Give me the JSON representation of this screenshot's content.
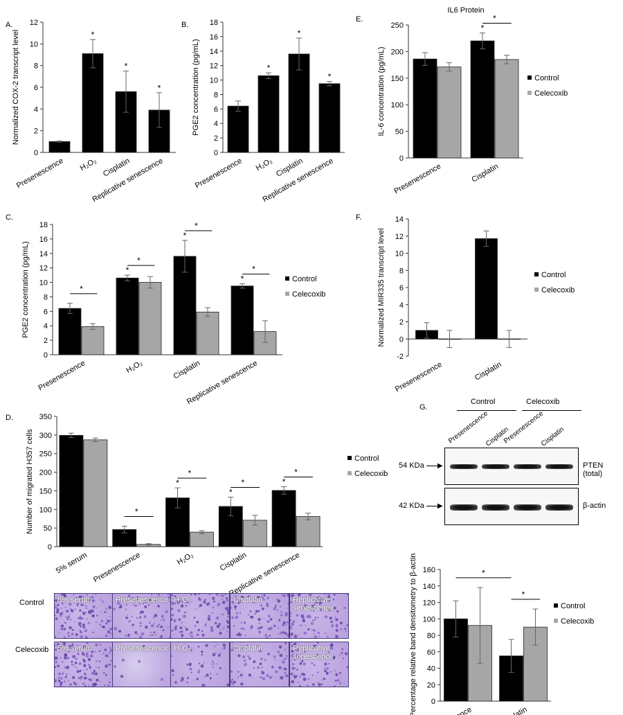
{
  "colors": {
    "control": "#000000",
    "celecoxib": "#a6a6a6",
    "axis": "#333333"
  },
  "panels": {
    "A": "A.",
    "B": "B.",
    "C": "C.",
    "D": "D.",
    "E": "E.",
    "F": "F.",
    "G": "G."
  },
  "chart_data": [
    {
      "id": "A",
      "type": "bar",
      "ylabel": "Normalized COX-2 transcript level",
      "ylim": [
        0,
        12
      ],
      "yticks": [
        0,
        2,
        4,
        6,
        8,
        10,
        12
      ],
      "categories": [
        "Presenescence",
        "H₂O₂",
        "Cisplatin",
        "Replicative senescence"
      ],
      "series": [
        {
          "values": [
            1.0,
            9.1,
            5.6,
            3.9
          ],
          "err": [
            0.05,
            1.3,
            1.9,
            1.6
          ],
          "sig": [
            false,
            true,
            true,
            true
          ]
        }
      ]
    },
    {
      "id": "B",
      "type": "bar",
      "ylabel": "PGE2 concentration (pg/mL)",
      "ylim": [
        0,
        18
      ],
      "yticks": [
        0,
        2,
        4,
        6,
        8,
        10,
        12,
        14,
        16,
        18
      ],
      "categories": [
        "Presenescence",
        "H₂O₂",
        "Cisplatin",
        "Replicative senescence"
      ],
      "series": [
        {
          "values": [
            6.4,
            10.6,
            13.6,
            9.5
          ],
          "err": [
            0.7,
            0.4,
            2.2,
            0.3
          ],
          "sig": [
            false,
            true,
            true,
            true
          ]
        }
      ]
    },
    {
      "id": "E",
      "type": "bar",
      "title": "IL6 Protein",
      "ylabel": "IL-6 concentration (pg/mL)",
      "ylim": [
        0,
        250
      ],
      "yticks": [
        0,
        50,
        100,
        150,
        200,
        250
      ],
      "categories": [
        "Presenescence",
        "Cisplatin"
      ],
      "legend": [
        "Control",
        "Celecoxib"
      ],
      "series": [
        {
          "name": "Control",
          "values": [
            186,
            220
          ],
          "err": [
            12,
            15
          ],
          "sig": [
            false,
            true
          ]
        },
        {
          "name": "Celecoxib",
          "values": [
            171,
            185
          ],
          "err": [
            8,
            8
          ],
          "sig": [
            false,
            false
          ]
        }
      ],
      "brackets": [
        {
          "category": 1,
          "label": "*"
        }
      ]
    },
    {
      "id": "C",
      "type": "bar",
      "ylabel": "PGE2 concentration (pg/mL)",
      "ylim": [
        0,
        18
      ],
      "yticks": [
        0,
        2,
        4,
        6,
        8,
        10,
        12,
        14,
        16,
        18
      ],
      "categories": [
        "Presenescence",
        "H₂O₂",
        "Cisplatin",
        "Replicative senescence"
      ],
      "legend": [
        "Control",
        "Celecoxib"
      ],
      "series": [
        {
          "name": "Control",
          "values": [
            6.4,
            10.6,
            13.6,
            9.5
          ],
          "err": [
            0.7,
            0.4,
            2.2,
            0.3
          ],
          "sig": [
            false,
            true,
            true,
            true
          ]
        },
        {
          "name": "Celecoxib",
          "values": [
            3.9,
            10.0,
            5.9,
            3.2
          ],
          "err": [
            0.4,
            0.8,
            0.6,
            1.5
          ],
          "sig": [
            false,
            false,
            false,
            false
          ]
        }
      ],
      "brackets": [
        {
          "category": 0,
          "label": "*"
        },
        {
          "category": 1,
          "label": "*"
        },
        {
          "category": 2,
          "label": "*"
        },
        {
          "category": 3,
          "label": "*"
        }
      ]
    },
    {
      "id": "F",
      "type": "bar",
      "ylabel": "Normalized MIR335 transcript level",
      "ylim": [
        -2,
        14
      ],
      "yticks": [
        -2,
        0,
        2,
        4,
        6,
        8,
        10,
        12,
        14
      ],
      "categories": [
        "Presenescence",
        "Cisplatin"
      ],
      "legend": [
        "Control",
        "Celecoxib"
      ],
      "series": [
        {
          "name": "Control",
          "values": [
            1.0,
            11.7
          ],
          "err": [
            0.9,
            0.9
          ],
          "sig": [
            false,
            false
          ]
        },
        {
          "name": "Celecoxib",
          "values": [
            0.0,
            0.0
          ],
          "err": [
            1.0,
            1.0
          ],
          "sig": [
            false,
            false
          ]
        }
      ]
    },
    {
      "id": "D",
      "type": "bar",
      "ylabel": "Number of migrated H357 cells",
      "ylim": [
        0,
        350
      ],
      "yticks": [
        0,
        50,
        100,
        150,
        200,
        250,
        300,
        350
      ],
      "categories": [
        "5% serum",
        "Presenescence",
        "H₂O₂",
        "Cisplatin",
        "Replicative senescence"
      ],
      "legend": [
        "Control",
        "Celecoxib"
      ],
      "series": [
        {
          "name": "Control",
          "values": [
            299,
            46,
            131,
            108,
            151
          ],
          "err": [
            6,
            9,
            27,
            25,
            10
          ],
          "sig": [
            false,
            false,
            true,
            true,
            true
          ]
        },
        {
          "name": "Celecoxib",
          "values": [
            287,
            6,
            39,
            71,
            81
          ],
          "err": [
            5,
            2,
            4,
            13,
            9
          ],
          "sig": [
            false,
            false,
            false,
            false,
            false
          ]
        }
      ],
      "brackets": [
        {
          "category": 1,
          "label": "*"
        },
        {
          "category": 2,
          "label": "*"
        },
        {
          "category": 3,
          "label": "*"
        },
        {
          "category": 4,
          "label": "*"
        }
      ]
    },
    {
      "id": "G",
      "type": "bar",
      "ylabel": "Percentage relative band densitometry to β-actin",
      "ylim": [
        0,
        160
      ],
      "yticks": [
        0,
        20,
        40,
        60,
        80,
        100,
        120,
        140,
        160
      ],
      "categories": [
        "Presenescence",
        "Cisplatin"
      ],
      "legend": [
        "Control",
        "Celecoxib"
      ],
      "series": [
        {
          "name": "Control",
          "values": [
            100,
            55
          ],
          "err": [
            22,
            20
          ],
          "sig": [
            false,
            false
          ]
        },
        {
          "name": "Celecoxib",
          "values": [
            92,
            90
          ],
          "err": [
            46,
            22
          ],
          "sig": [
            false,
            false
          ]
        }
      ],
      "brackets": [
        {
          "category": 1,
          "label": "*"
        }
      ],
      "spanBracket": {
        "label": "*"
      }
    }
  ],
  "blot": {
    "groups": [
      "Control",
      "Celecoxib"
    ],
    "lanes": [
      "Presenescence",
      "Cisplatin",
      "Presenescence",
      "Cisplatin"
    ],
    "bands": [
      {
        "size": "54 KDa",
        "label": "PTEN (total)"
      },
      {
        "size": "42 KDa",
        "label": "β-actin"
      }
    ]
  },
  "migration_photos": {
    "rows": [
      "Control",
      "Celecoxib"
    ],
    "columns": [
      "5% serum",
      "Presenescence",
      "H₂O₂",
      "Cisplatin",
      "Replicative senescence"
    ]
  }
}
